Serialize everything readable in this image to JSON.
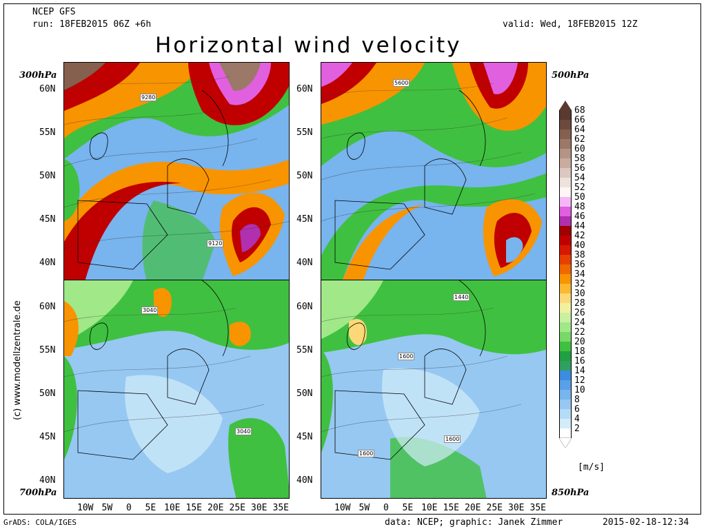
{
  "header": {
    "model": "NCEP GFS",
    "run": "run: 18FEB2015 06Z +6h",
    "valid": "valid: Wed, 18FEB2015 12Z",
    "title": "Horizontal wind velocity"
  },
  "levels": {
    "top_left": "300hPa",
    "top_right": "500hPa",
    "bottom_left": "700hPa",
    "bottom_right": "850hPa"
  },
  "lat_labels": [
    "60N",
    "55N",
    "50N",
    "45N",
    "40N"
  ],
  "lon_labels": [
    "10W",
    "5W",
    "0",
    "5E",
    "10E",
    "15E",
    "20E",
    "25E",
    "30E",
    "35E"
  ],
  "height_labels": {
    "p300_a": "9280",
    "p300_b": "9120",
    "p500_a": "5600",
    "p700_a": "3040",
    "p700_b": "3040",
    "p850_a": "1440",
    "p850_b": "1600",
    "p850_c": "1600",
    "p850_d": "1600"
  },
  "watermark": "(c) www.modellzentrale.de",
  "footer": {
    "left": "GrADS: COLA/IGES",
    "credit": "data: NCEP; graphic: Janek Zimmer",
    "timestamp": "2015-02-18-12:34"
  },
  "colorbar": {
    "unit": "[m/s]",
    "labels": [
      "68",
      "66",
      "64",
      "62",
      "60",
      "58",
      "56",
      "54",
      "52",
      "50",
      "48",
      "46",
      "44",
      "42",
      "40",
      "38",
      "36",
      "34",
      "32",
      "30",
      "28",
      "26",
      "24",
      "22",
      "20",
      "18",
      "16",
      "14",
      "12",
      "10",
      "8",
      "6",
      "4",
      "2"
    ],
    "colors": [
      "#5a3a30",
      "#6e4a3e",
      "#86604f",
      "#9c7868",
      "#b49486",
      "#c8aca0",
      "#dcc8c0",
      "#eee2dc",
      "#fff6f6",
      "#f4b8f4",
      "#e060e0",
      "#b030b0",
      "#a00000",
      "#c00000",
      "#d81800",
      "#e84000",
      "#f06800",
      "#f89400",
      "#fcb830",
      "#fcd878",
      "#f0f0a0",
      "#c8f0a0",
      "#a0e888",
      "#78d868",
      "#40c040",
      "#20a040",
      "#30a060",
      "#3c8ce0",
      "#5aa0e8",
      "#78b4ee",
      "#96c8f2",
      "#b4dcf6",
      "#d2ecfa",
      "#ffffff"
    ]
  },
  "chart_data": {
    "type": "heatmap",
    "title": "Horizontal wind velocity",
    "panels": [
      "300hPa",
      "500hPa",
      "700hPa",
      "850hPa"
    ],
    "xlabel": "",
    "ylabel": "",
    "x_ticks": [
      "10W",
      "5W",
      "0",
      "5E",
      "10E",
      "15E",
      "20E",
      "25E",
      "30E",
      "35E"
    ],
    "y_ticks": [
      "60N",
      "55N",
      "50N",
      "45N",
      "40N"
    ],
    "color_scale_range": [
      2,
      68
    ],
    "unit": "[m/s]"
  }
}
